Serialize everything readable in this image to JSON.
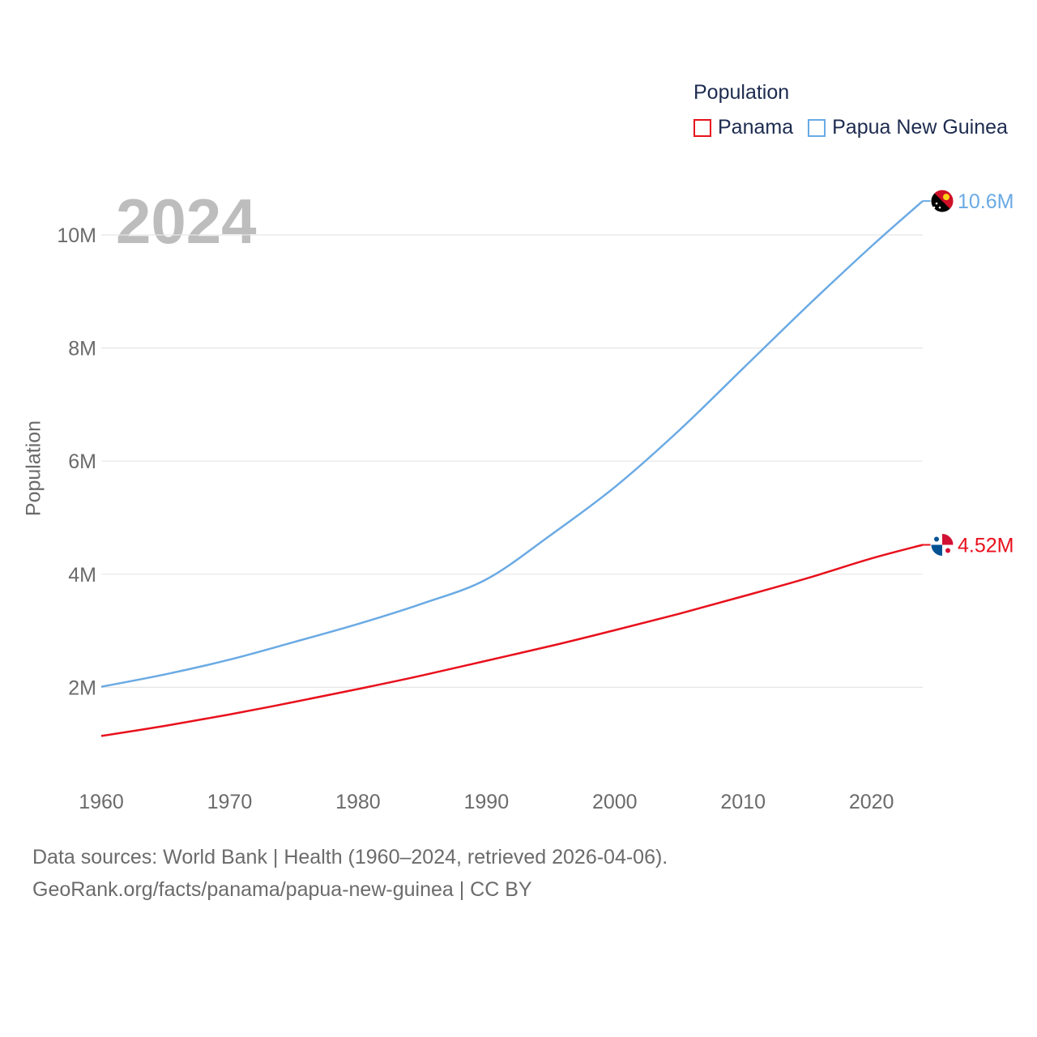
{
  "chart_data": {
    "type": "line",
    "year_label": "2024",
    "ylabel": "Population",
    "xlabel": "",
    "xlim": [
      1960,
      2024
    ],
    "ylim": [
      0,
      11000000
    ],
    "x_ticks": [
      1960,
      1970,
      1980,
      1990,
      2000,
      2010,
      2020
    ],
    "y_ticks": [
      {
        "value": 2000000,
        "label": "2M"
      },
      {
        "value": 4000000,
        "label": "4M"
      },
      {
        "value": 6000000,
        "label": "6M"
      },
      {
        "value": 8000000,
        "label": "8M"
      },
      {
        "value": 10000000,
        "label": "10M"
      }
    ],
    "legend": {
      "title": "Population",
      "position": "top-right"
    },
    "series": [
      {
        "name": "Panama",
        "color": "#e8101c",
        "end_label": "4.52M",
        "flag_icon": "panama-flag-icon",
        "points": [
          [
            1960,
            1140000
          ],
          [
            1965,
            1320000
          ],
          [
            1970,
            1520000
          ],
          [
            1975,
            1740000
          ],
          [
            1980,
            1970000
          ],
          [
            1985,
            2210000
          ],
          [
            1990,
            2470000
          ],
          [
            1995,
            2730000
          ],
          [
            2000,
            3010000
          ],
          [
            2005,
            3300000
          ],
          [
            2010,
            3610000
          ],
          [
            2015,
            3930000
          ],
          [
            2020,
            4280000
          ],
          [
            2024,
            4520000
          ]
        ]
      },
      {
        "name": "Papua New Guinea",
        "color": "#6aaae4",
        "end_label": "10.6M",
        "flag_icon": "papua-new-guinea-flag-icon",
        "points": [
          [
            1960,
            2010000
          ],
          [
            1965,
            2230000
          ],
          [
            1970,
            2490000
          ],
          [
            1975,
            2800000
          ],
          [
            1980,
            3120000
          ],
          [
            1985,
            3480000
          ],
          [
            1990,
            3910000
          ],
          [
            1995,
            4690000
          ],
          [
            2000,
            5540000
          ],
          [
            2005,
            6540000
          ],
          [
            2010,
            7640000
          ],
          [
            2015,
            8740000
          ],
          [
            2020,
            9800000
          ],
          [
            2024,
            10600000
          ]
        ]
      }
    ]
  },
  "footer": {
    "line1": "Data sources: World Bank | Health (1960–2024, retrieved 2026-04-06).",
    "line2": "GeoRank.org/facts/panama/papua-new-guinea | CC BY"
  }
}
